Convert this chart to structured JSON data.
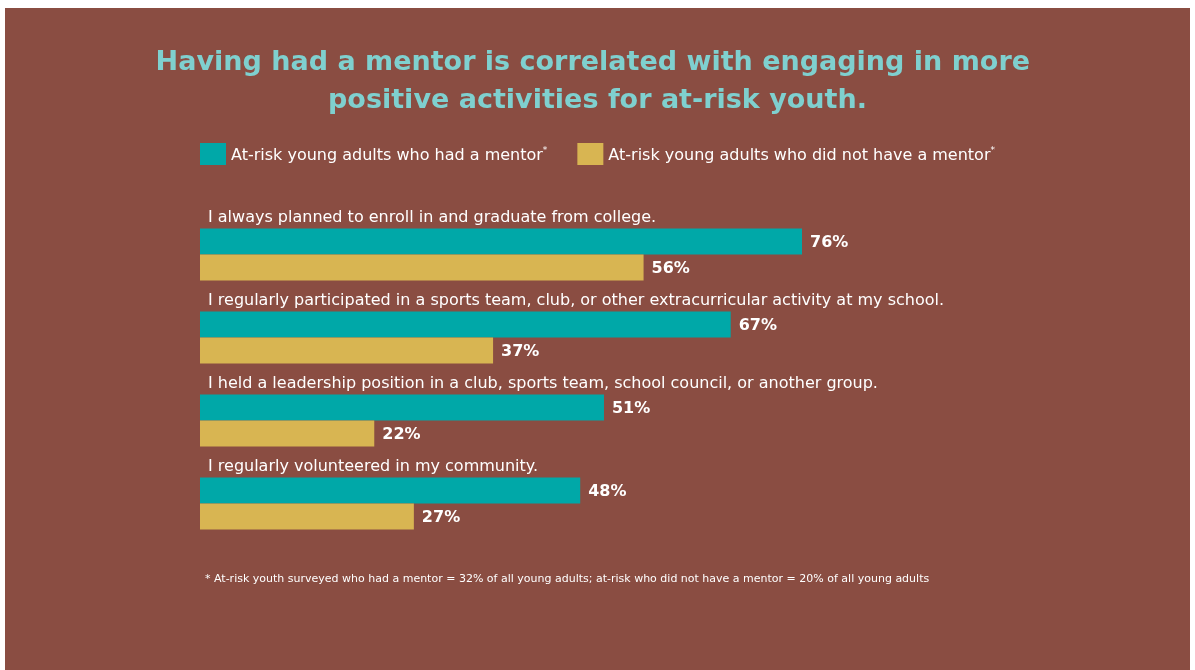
{
  "chart_data": {
    "type": "bar",
    "orientation": "horizontal",
    "title": "Having had a mentor is correlated with engaging in more positive activities for at-risk youth.",
    "categories": [
      "I always planned to enroll in and graduate from college.",
      "I regularly participated in a sports team, club, or other extracurricular activity at my school.",
      "I held a leadership position in a club, sports team, school council, or another group.",
      "I regularly volunteered in my community."
    ],
    "series": [
      {
        "name": "At-risk young adults who had a mentor$^{*}$",
        "color": "#00a8a8",
        "values": [
          76,
          67,
          51,
          48
        ],
        "value_labels": [
          "76%",
          "67%",
          "51%",
          "48%"
        ]
      },
      {
        "name": "At-risk young adults who did not have a mentor$^{*}$",
        "color": "#d8b552",
        "values": [
          56,
          37,
          22,
          27
        ],
        "value_labels": [
          "56%",
          "37%",
          "22%",
          "27%"
        ]
      }
    ],
    "legend": "top",
    "tick_labels": "y",
    "annotations": [
      "* At-risk youth surveyed who had a mentor = 32% of all young adults; at-risk who did not have a mentor = 20% of all young adults"
    ]
  }
}
